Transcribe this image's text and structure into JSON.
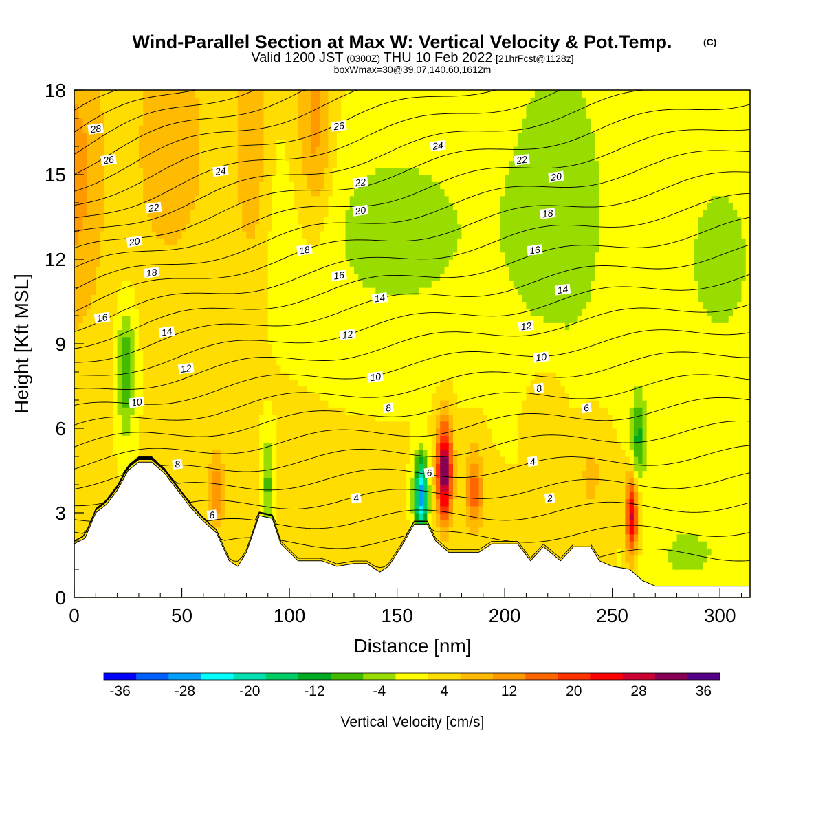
{
  "header": {
    "title": "Wind-Parallel Section at Max W: Vertical Velocity & Pot.Temp.",
    "copyright": "(C)",
    "valid_prefix": "Valid 1200 JST",
    "valid_utc": "(0300Z)",
    "valid_date": "THU 10 Feb 2022",
    "forecast": "[21hrFcst@1128z]",
    "boxwmax": "boxWmax=30@39.07,140.60,1612m"
  },
  "colors": {
    "bins": [
      "#0000ff",
      "#0060ff",
      "#00a0ff",
      "#00ffff",
      "#00e0b0",
      "#00cc66",
      "#00aa22",
      "#44bb00",
      "#99dd00",
      "#ffff00",
      "#ffdd00",
      "#ffbb00",
      "#ff9900",
      "#ff6600",
      "#ff3300",
      "#ff0000",
      "#cc0033",
      "#880055",
      "#550088"
    ],
    "terrain": "#ffffff",
    "contour": "#000000"
  },
  "chart_data": {
    "type": "heatmap",
    "xlabel": "Distance [nm]",
    "ylabel": "Height [Kft MSL]",
    "xlim": [
      0,
      314
    ],
    "ylim": [
      0,
      18
    ],
    "x_ticks": [
      0,
      50,
      100,
      150,
      200,
      250,
      300
    ],
    "y_ticks": [
      0,
      3,
      6,
      9,
      12,
      15,
      18
    ],
    "colorbar": {
      "label": "Vertical Velocity [cm/s]",
      "ticks": [
        -36,
        -28,
        -20,
        -12,
        -4,
        4,
        12,
        20,
        28,
        36
      ],
      "min": -38,
      "max": 38,
      "step": 4
    },
    "terrain_kft": [
      [
        0,
        1.9
      ],
      [
        5,
        2.1
      ],
      [
        10,
        3.0
      ],
      [
        15,
        3.3
      ],
      [
        20,
        3.8
      ],
      [
        25,
        4.5
      ],
      [
        30,
        4.8
      ],
      [
        36,
        4.8
      ],
      [
        42,
        4.4
      ],
      [
        48,
        3.8
      ],
      [
        54,
        3.2
      ],
      [
        60,
        2.7
      ],
      [
        66,
        2.3
      ],
      [
        72,
        1.3
      ],
      [
        76,
        1.1
      ],
      [
        80,
        1.6
      ],
      [
        86,
        2.9
      ],
      [
        92,
        2.8
      ],
      [
        96,
        1.9
      ],
      [
        100,
        1.6
      ],
      [
        104,
        1.3
      ],
      [
        110,
        1.3
      ],
      [
        115,
        1.3
      ],
      [
        122,
        1.1
      ],
      [
        130,
        1.2
      ],
      [
        136,
        1.2
      ],
      [
        142,
        0.9
      ],
      [
        146,
        1.1
      ],
      [
        152,
        1.8
      ],
      [
        158,
        2.6
      ],
      [
        164,
        2.6
      ],
      [
        168,
        2.0
      ],
      [
        174,
        1.6
      ],
      [
        180,
        1.6
      ],
      [
        188,
        1.6
      ],
      [
        194,
        1.9
      ],
      [
        200,
        1.9
      ],
      [
        206,
        1.9
      ],
      [
        212,
        1.3
      ],
      [
        218,
        1.8
      ],
      [
        226,
        1.3
      ],
      [
        232,
        1.8
      ],
      [
        240,
        1.8
      ],
      [
        244,
        1.3
      ],
      [
        250,
        1.1
      ],
      [
        258,
        1.0
      ],
      [
        264,
        0.6
      ],
      [
        270,
        0.4
      ],
      [
        300,
        0.4
      ],
      [
        314,
        0.4
      ]
    ],
    "theta_labels": [
      {
        "x": 10,
        "y": 16.6,
        "v": "28"
      },
      {
        "x": 16,
        "y": 15.5,
        "v": "26"
      },
      {
        "x": 37,
        "y": 13.8,
        "v": "22"
      },
      {
        "x": 28,
        "y": 12.6,
        "v": "20"
      },
      {
        "x": 36,
        "y": 11.5,
        "v": "18"
      },
      {
        "x": 13,
        "y": 9.9,
        "v": "16"
      },
      {
        "x": 43,
        "y": 9.4,
        "v": "14"
      },
      {
        "x": 52,
        "y": 8.1,
        "v": "12"
      },
      {
        "x": 29,
        "y": 6.9,
        "v": "10"
      },
      {
        "x": 48,
        "y": 4.7,
        "v": "8"
      },
      {
        "x": 64,
        "y": 2.9,
        "v": "6"
      },
      {
        "x": 68,
        "y": 15.1,
        "v": "24"
      },
      {
        "x": 123,
        "y": 16.7,
        "v": "26"
      },
      {
        "x": 133,
        "y": 14.7,
        "v": "22"
      },
      {
        "x": 133,
        "y": 13.7,
        "v": "20"
      },
      {
        "x": 107,
        "y": 12.3,
        "v": "18"
      },
      {
        "x": 123,
        "y": 11.4,
        "v": "16"
      },
      {
        "x": 142,
        "y": 10.6,
        "v": "14"
      },
      {
        "x": 127,
        "y": 9.3,
        "v": "12"
      },
      {
        "x": 140,
        "y": 7.8,
        "v": "10"
      },
      {
        "x": 146,
        "y": 6.7,
        "v": "8"
      },
      {
        "x": 131,
        "y": 3.5,
        "v": "4"
      },
      {
        "x": 165,
        "y": 4.4,
        "v": "6"
      },
      {
        "x": 169,
        "y": 16.0,
        "v": "24"
      },
      {
        "x": 208,
        "y": 15.5,
        "v": "22"
      },
      {
        "x": 224,
        "y": 14.9,
        "v": "20"
      },
      {
        "x": 220,
        "y": 13.6,
        "v": "18"
      },
      {
        "x": 214,
        "y": 12.3,
        "v": "16"
      },
      {
        "x": 227,
        "y": 10.9,
        "v": "14"
      },
      {
        "x": 210,
        "y": 9.6,
        "v": "12"
      },
      {
        "x": 217,
        "y": 8.5,
        "v": "10"
      },
      {
        "x": 216,
        "y": 7.4,
        "v": "8"
      },
      {
        "x": 238,
        "y": 6.7,
        "v": "6"
      },
      {
        "x": 213,
        "y": 4.8,
        "v": "4"
      },
      {
        "x": 221,
        "y": 3.5,
        "v": "2"
      }
    ]
  }
}
